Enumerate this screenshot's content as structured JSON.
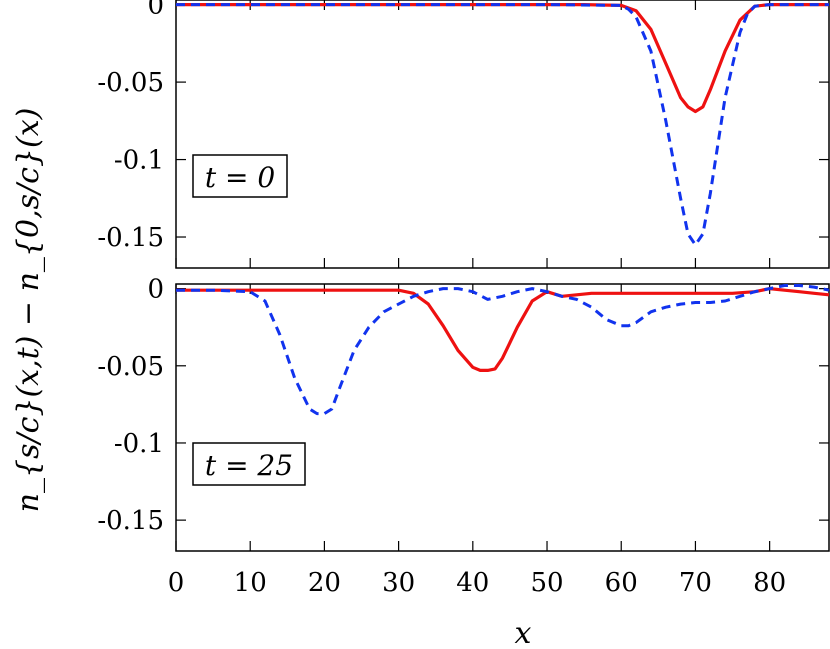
{
  "chart_data": [
    {
      "type": "line",
      "panel": "top",
      "annotation": "t = 0",
      "xlim": [
        0,
        88
      ],
      "ylim": [
        -0.17,
        0.003
      ],
      "xticks": [
        "0",
        "10",
        "20",
        "30",
        "40",
        "50",
        "60",
        "70",
        "80"
      ],
      "yticks": [
        "0",
        "-0.05",
        "-0.1",
        "-0.15"
      ],
      "ytick_values": [
        0,
        -0.05,
        -0.1,
        -0.15
      ],
      "series": [
        {
          "style": "solid",
          "color": "#ee1111",
          "x": [
            0,
            10,
            20,
            30,
            40,
            50,
            55,
            60,
            62,
            64,
            66,
            68,
            69,
            70,
            71,
            72,
            74,
            76,
            78,
            80,
            88
          ],
          "y": [
            0,
            0,
            0,
            0,
            0,
            0,
            0,
            -0.0005,
            -0.004,
            -0.016,
            -0.038,
            -0.06,
            -0.066,
            -0.069,
            -0.066,
            -0.055,
            -0.03,
            -0.01,
            -0.001,
            0,
            0
          ]
        },
        {
          "style": "dashed",
          "color": "#1133ee",
          "x": [
            0,
            10,
            20,
            30,
            40,
            50,
            60,
            61,
            62,
            64,
            66,
            68,
            69,
            70,
            71,
            72,
            74,
            76,
            77,
            78,
            80,
            88
          ],
          "y": [
            0,
            0,
            0,
            0,
            0,
            0,
            -0.0005,
            -0.003,
            -0.008,
            -0.03,
            -0.075,
            -0.125,
            -0.148,
            -0.155,
            -0.148,
            -0.122,
            -0.06,
            -0.018,
            -0.006,
            -0.001,
            0,
            0
          ]
        }
      ]
    },
    {
      "type": "line",
      "panel": "bottom",
      "annotation": "t = 25",
      "xlabel": "x",
      "xlim": [
        0,
        88
      ],
      "ylim": [
        -0.17,
        0.003
      ],
      "xticks": [
        "0",
        "10",
        "20",
        "30",
        "40",
        "50",
        "60",
        "70",
        "80"
      ],
      "yticks": [
        "0",
        "-0.05",
        "-0.1",
        "-0.15"
      ],
      "ytick_values": [
        0,
        -0.05,
        -0.1,
        -0.15
      ],
      "series": [
        {
          "style": "solid",
          "color": "#ee1111",
          "x": [
            0,
            10,
            20,
            30,
            32,
            34,
            36,
            38,
            40,
            41,
            42,
            43,
            44,
            46,
            48,
            50,
            52,
            54,
            56,
            60,
            64,
            68,
            70,
            72,
            75,
            78,
            80,
            82,
            84,
            86,
            88
          ],
          "y": [
            -0.001,
            -0.001,
            -0.001,
            -0.001,
            -0.003,
            -0.01,
            -0.024,
            -0.04,
            -0.051,
            -0.053,
            -0.053,
            -0.052,
            -0.045,
            -0.025,
            -0.008,
            -0.002,
            -0.005,
            -0.004,
            -0.003,
            -0.003,
            -0.003,
            -0.003,
            -0.003,
            -0.003,
            -0.003,
            -0.002,
            0,
            -0.001,
            -0.002,
            -0.003,
            -0.004
          ]
        },
        {
          "style": "dashed",
          "color": "#1133ee",
          "x": [
            0,
            5,
            10,
            12,
            14,
            16,
            18,
            19,
            20,
            21,
            22,
            24,
            26,
            28,
            30,
            32,
            34,
            36,
            38,
            40,
            42,
            44,
            46,
            48,
            50,
            52,
            54,
            56,
            58,
            60,
            61,
            62,
            64,
            66,
            68,
            70,
            72,
            74,
            76,
            78,
            80,
            82,
            84,
            86,
            88
          ],
          "y": [
            -0.001,
            -0.001,
            -0.002,
            -0.008,
            -0.03,
            -0.058,
            -0.078,
            -0.081,
            -0.081,
            -0.078,
            -0.065,
            -0.04,
            -0.025,
            -0.015,
            -0.01,
            -0.005,
            -0.002,
            0,
            0,
            -0.002,
            -0.007,
            -0.005,
            -0.002,
            0,
            -0.002,
            -0.005,
            -0.007,
            -0.012,
            -0.02,
            -0.024,
            -0.024,
            -0.022,
            -0.015,
            -0.012,
            -0.01,
            -0.009,
            -0.009,
            -0.008,
            -0.005,
            -0.002,
            0,
            0.002,
            0.002,
            0.001,
            -0.001
          ]
        }
      ]
    }
  ],
  "shared_ylabel": "n_{s/c}(x,t) − n_{0,s/c}(x)"
}
